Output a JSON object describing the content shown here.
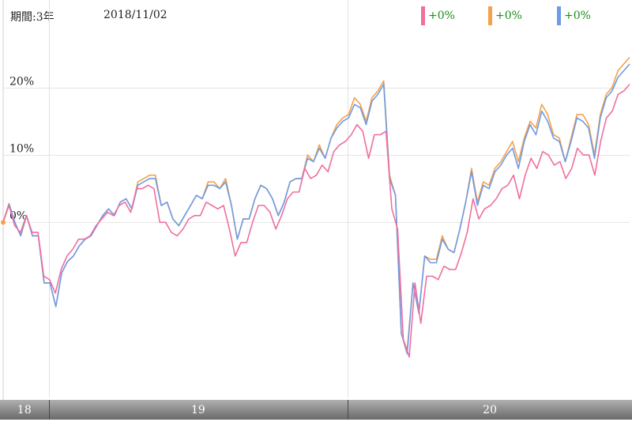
{
  "header": {
    "period": "期間:3年",
    "date": "2018/11/02"
  },
  "legend": [
    {
      "color": "#ee6fa0",
      "value": "+0%"
    },
    {
      "color": "#f5a14a",
      "value": "+0%"
    },
    {
      "color": "#6f9be6",
      "value": "+0%"
    }
  ],
  "chart_data": {
    "type": "line",
    "x_range": [
      0,
      132
    ],
    "ylim": [
      -26,
      33
    ],
    "yticks": [
      {
        "value": 0,
        "label": "0%"
      },
      {
        "value": 10,
        "label": "10%"
      },
      {
        "value": 20,
        "label": "20%"
      }
    ],
    "year_bands": [
      {
        "label": "18",
        "start": 0,
        "end": 9.6
      },
      {
        "label": "19",
        "start": 9.6,
        "end": 72.6
      },
      {
        "label": "20",
        "start": 72.6,
        "end": 132
      }
    ],
    "series": [
      {
        "color": "#f5a14a",
        "values": [
          0,
          2.8,
          0,
          -2,
          1,
          -2,
          -2,
          -9,
          -9,
          -12.5,
          -7.5,
          -5.8,
          -5,
          -3.5,
          -2.5,
          -2,
          -0.5,
          1,
          2,
          1,
          3,
          3.5,
          2,
          6,
          6.5,
          7,
          7,
          2.5,
          3,
          0.5,
          -0.5,
          1,
          2.5,
          4,
          3.5,
          6,
          6,
          5,
          6.5,
          2.5,
          -2.5,
          0.5,
          0.5,
          3.5,
          5.5,
          5,
          3.5,
          1,
          3,
          6,
          6.5,
          6.5,
          10,
          9,
          11.5,
          9.5,
          12.5,
          14.5,
          15.5,
          16,
          18.5,
          17.5,
          15,
          18.5,
          19.5,
          21,
          7,
          4,
          -16.5,
          -19,
          -9,
          -13.5,
          -5,
          -5.5,
          -5.5,
          -2,
          -4,
          -4.5,
          -1,
          3,
          8,
          3,
          6,
          5.5,
          8,
          9,
          10.5,
          12,
          9,
          12.5,
          15,
          14,
          17.5,
          16,
          13,
          12.5,
          9,
          12.5,
          16,
          16,
          14.5,
          10,
          16,
          19,
          20,
          22.5,
          23.5,
          24.5
        ]
      },
      {
        "color": "#6f9be6",
        "values": [
          0,
          2.7,
          0,
          -2,
          1,
          -2,
          -2,
          -9,
          -9,
          -12.5,
          -7.5,
          -5.8,
          -5,
          -3.5,
          -2.5,
          -2,
          -0.5,
          1,
          2,
          1,
          3,
          3.5,
          2,
          5.5,
          6,
          6.5,
          6.5,
          2.5,
          3,
          0.5,
          -0.5,
          1,
          2.5,
          4,
          3.5,
          5.5,
          5.5,
          5,
          6,
          2.5,
          -2.5,
          0.5,
          0.5,
          3.5,
          5.5,
          5,
          3.5,
          1,
          3,
          6,
          6.5,
          6.5,
          9.5,
          9,
          11,
          9.5,
          12.5,
          14,
          15,
          15.5,
          17.5,
          17,
          14.5,
          18,
          19,
          20.5,
          6.5,
          4,
          -16.5,
          -19.5,
          -9,
          -13.5,
          -5,
          -6,
          -6,
          -2.5,
          -4,
          -4.5,
          -1,
          3,
          7.5,
          2.5,
          5.5,
          5,
          7.5,
          8.5,
          10,
          11,
          8,
          12,
          14.5,
          13,
          16.5,
          15,
          12.5,
          12,
          9,
          12,
          15.5,
          15,
          14,
          9.5,
          15.5,
          18.5,
          19.5,
          21.5,
          22.5,
          23.5
        ]
      },
      {
        "color": "#ee6fa0",
        "values": [
          0,
          2.5,
          -0.5,
          -1.5,
          1,
          -1.5,
          -1.5,
          -8,
          -8.5,
          -10.5,
          -7,
          -5,
          -4,
          -2.5,
          -2.5,
          -2,
          -0.5,
          0.5,
          1.5,
          1,
          2.5,
          3,
          1.5,
          5,
          5,
          5.5,
          5,
          0,
          0,
          -1.5,
          -2,
          -1,
          0.5,
          1,
          1,
          3,
          2.5,
          2,
          2.5,
          -1,
          -5,
          -3,
          -3,
          0,
          2.5,
          2.5,
          1.5,
          -1,
          1,
          3.5,
          4.5,
          4.5,
          8,
          6.5,
          7,
          8.5,
          7.5,
          10.5,
          11.5,
          12,
          13,
          14.5,
          13.5,
          9.5,
          13,
          13,
          13.5,
          2,
          -1,
          -17.5,
          -20,
          -9,
          -15,
          -8,
          -8,
          -8.5,
          -6.5,
          -7,
          -7,
          -4.5,
          -1.5,
          3.5,
          0.5,
          2,
          2.5,
          3.5,
          5,
          5.5,
          7,
          3.5,
          7,
          9.5,
          8,
          10.5,
          10,
          8.5,
          9,
          6.5,
          8,
          11,
          10,
          10,
          7,
          12,
          15.5,
          16.5,
          19,
          19.5,
          20.5
        ]
      }
    ]
  }
}
